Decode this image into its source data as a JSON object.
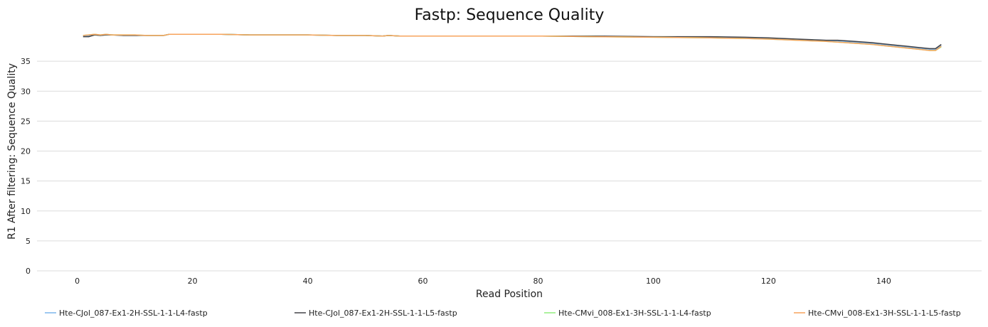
{
  "chart_data": {
    "type": "line",
    "title": "Fastp: Sequence Quality",
    "xlabel": "Read Position",
    "ylabel": "R1 After filtering: Sequence Quality",
    "xlim": [
      -7,
      157
    ],
    "ylim": [
      0,
      40
    ],
    "xticks": [
      0,
      20,
      40,
      60,
      80,
      100,
      120,
      140
    ],
    "yticks": [
      0,
      5,
      10,
      15,
      20,
      25,
      30,
      35
    ],
    "grid": true,
    "legend_position": "bottom",
    "series": [
      {
        "name": "Hte-CJol_087-Ex1-2H-SSL-1-1-L4-fastp",
        "color": "#7cb5ec",
        "x": [
          1,
          2,
          3,
          4,
          5,
          6,
          8,
          10,
          12,
          15,
          16,
          18,
          20,
          25,
          30,
          40,
          45,
          50,
          53,
          54,
          56,
          60,
          70,
          80,
          90,
          100,
          110,
          116,
          120,
          125,
          130,
          132,
          135,
          138,
          140,
          143,
          146,
          148,
          149,
          150
        ],
        "y": [
          39.2,
          39.2,
          39.4,
          39.3,
          39.4,
          39.4,
          39.3,
          39.3,
          39.3,
          39.3,
          39.5,
          39.5,
          39.5,
          39.5,
          39.4,
          39.4,
          39.3,
          39.3,
          39.2,
          39.3,
          39.2,
          39.2,
          39.2,
          39.2,
          39.1,
          39.1,
          39.0,
          38.9,
          38.8,
          38.6,
          38.4,
          38.4,
          38.2,
          38.0,
          37.8,
          37.5,
          37.2,
          37.0,
          37.0,
          37.6
        ]
      },
      {
        "name": "Hte-CJol_087-Ex1-2H-SSL-1-1-L5-fastp",
        "color": "#434348",
        "x": [
          1,
          2,
          3,
          4,
          5,
          6,
          8,
          10,
          12,
          15,
          16,
          18,
          20,
          25,
          30,
          40,
          45,
          50,
          53,
          54,
          56,
          60,
          70,
          80,
          90,
          100,
          110,
          116,
          120,
          125,
          130,
          132,
          135,
          138,
          140,
          143,
          146,
          148,
          149,
          150
        ],
        "y": [
          39.1,
          39.1,
          39.4,
          39.3,
          39.4,
          39.4,
          39.3,
          39.3,
          39.3,
          39.3,
          39.5,
          39.5,
          39.5,
          39.5,
          39.4,
          39.4,
          39.3,
          39.3,
          39.2,
          39.3,
          39.2,
          39.2,
          39.2,
          39.2,
          39.2,
          39.1,
          39.1,
          39.0,
          38.9,
          38.7,
          38.5,
          38.5,
          38.3,
          38.1,
          37.9,
          37.6,
          37.3,
          37.1,
          37.1,
          37.8
        ]
      },
      {
        "name": "Hte-CMvi_008-Ex1-3H-SSL-1-1-L4-fastp",
        "color": "#90ed7d",
        "x": [
          1,
          2,
          3,
          4,
          5,
          6,
          8,
          10,
          12,
          15,
          16,
          18,
          20,
          25,
          30,
          40,
          45,
          50,
          53,
          54,
          56,
          60,
          70,
          80,
          90,
          100,
          110,
          116,
          120,
          125,
          130,
          132,
          135,
          138,
          140,
          143,
          146,
          148,
          149,
          150
        ],
        "y": [
          39.3,
          39.4,
          39.5,
          39.4,
          39.5,
          39.4,
          39.4,
          39.4,
          39.3,
          39.3,
          39.5,
          39.5,
          39.5,
          39.5,
          39.4,
          39.4,
          39.3,
          39.3,
          39.2,
          39.3,
          39.2,
          39.2,
          39.2,
          39.2,
          39.1,
          39.0,
          38.9,
          38.8,
          38.7,
          38.5,
          38.3,
          38.2,
          38.0,
          37.8,
          37.6,
          37.3,
          37.0,
          36.8,
          36.8,
          37.4
        ]
      },
      {
        "name": "Hte-CMvi_008-Ex1-3H-SSL-1-1-L5-fastp",
        "color": "#f7a35c",
        "x": [
          1,
          2,
          3,
          4,
          5,
          6,
          8,
          10,
          12,
          15,
          16,
          18,
          20,
          25,
          30,
          40,
          45,
          50,
          53,
          54,
          56,
          60,
          70,
          80,
          90,
          100,
          110,
          116,
          120,
          125,
          130,
          132,
          135,
          138,
          140,
          143,
          146,
          148,
          149,
          150
        ],
        "y": [
          39.3,
          39.4,
          39.5,
          39.4,
          39.5,
          39.4,
          39.4,
          39.4,
          39.3,
          39.3,
          39.5,
          39.5,
          39.5,
          39.5,
          39.4,
          39.4,
          39.3,
          39.3,
          39.2,
          39.3,
          39.2,
          39.2,
          39.2,
          39.2,
          39.1,
          39.0,
          38.9,
          38.8,
          38.7,
          38.5,
          38.3,
          38.2,
          38.0,
          37.8,
          37.6,
          37.3,
          37.0,
          36.8,
          36.8,
          37.5
        ]
      }
    ]
  }
}
